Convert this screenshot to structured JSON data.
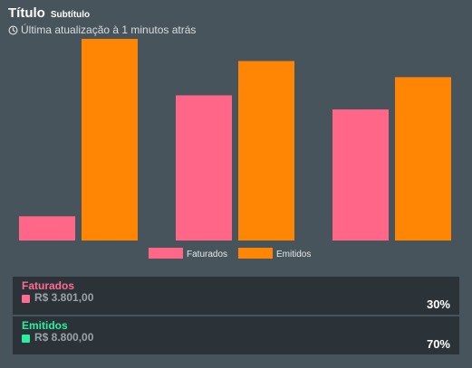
{
  "header": {
    "title": "Título",
    "subtitle": "Subtítulo",
    "updated_text": "Última atualização à 1 minutos atrás",
    "clock_icon": "clock-icon"
  },
  "colors": {
    "background": "#47545b",
    "panel": "#2b3338",
    "faturados": "#ff6688",
    "emitidos": "#ff8605",
    "faturados_label": "#ff6b92",
    "emitidos_label": "#29f0a0"
  },
  "chart_data": {
    "type": "bar",
    "categories": [
      "",
      "",
      ""
    ],
    "series": [
      {
        "name": "Faturados",
        "values": [
          1.2,
          7.2,
          6.5
        ]
      },
      {
        "name": "Emitidos",
        "values": [
          10,
          8.9,
          8.1
        ]
      }
    ],
    "ylim": [
      0,
      10
    ],
    "grid": false,
    "legend": "bottom",
    "title": "",
    "xlabel": "",
    "ylabel": ""
  },
  "summary": [
    {
      "label": "Faturados",
      "value": "R$ 3.801,00",
      "percent": "30%"
    },
    {
      "label": "Emitidos",
      "value": "R$ 8.800,00",
      "percent": "70%"
    }
  ]
}
